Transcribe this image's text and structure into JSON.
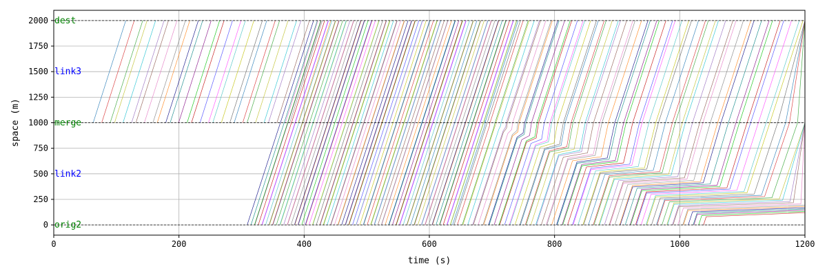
{
  "chart_data": {
    "type": "line",
    "title": "",
    "xlabel": "time (s)",
    "ylabel": "space (m)",
    "xlim": [
      0,
      1200
    ],
    "ylim": [
      -100,
      2100
    ],
    "x_ticks": [
      0,
      200,
      400,
      600,
      800,
      1000,
      1200
    ],
    "y_ticks": [
      0,
      250,
      500,
      750,
      1000,
      1250,
      1500,
      1750,
      2000
    ],
    "grid": true,
    "node_lines": [
      0,
      1000,
      2000
    ],
    "annotations": [
      {
        "text": "dest",
        "x": 0,
        "y": 2000,
        "color": "#008000"
      },
      {
        "text": "link3",
        "x": 0,
        "y": 1500,
        "color": "#0000ff"
      },
      {
        "text": "merge",
        "x": 0,
        "y": 1000,
        "color": "#008000"
      },
      {
        "text": "link2",
        "x": 0,
        "y": 500,
        "color": "#0000ff"
      },
      {
        "text": "orig2",
        "x": 0,
        "y": 0,
        "color": "#008000"
      }
    ],
    "series_groups": [
      {
        "description_key": "link3_only",
        "start_y": 1000,
        "end_y": 2000,
        "first_start_x": 66,
        "last_start_x": 390,
        "count": 30,
        "travel_time": 52
      },
      {
        "description_key": "from_orig2_free",
        "start_y": 0,
        "end_y": 2000,
        "first_start_x": 312,
        "last_start_x": 640,
        "count": 90,
        "travel_time": 106
      },
      {
        "description_key": "from_orig2_queued",
        "start_y": 0,
        "end_y": 2000,
        "first_start_x": 640,
        "last_start_x": 1035,
        "count": 75,
        "travel_time": 106
      }
    ],
    "line_colors": [
      "#1f77b4",
      "#d62728",
      "#2ca02c",
      "#bcbd22",
      "#17becf",
      "#9467bd",
      "#8c564b",
      "#e377c2",
      "#7f7f7f",
      "#ff7f0e",
      "#000080",
      "#008080",
      "#800080",
      "#00c000",
      "#c00000",
      "#4040ff",
      "#ff40ff",
      "#40c0c0",
      "#c0c000",
      "#606060"
    ]
  }
}
